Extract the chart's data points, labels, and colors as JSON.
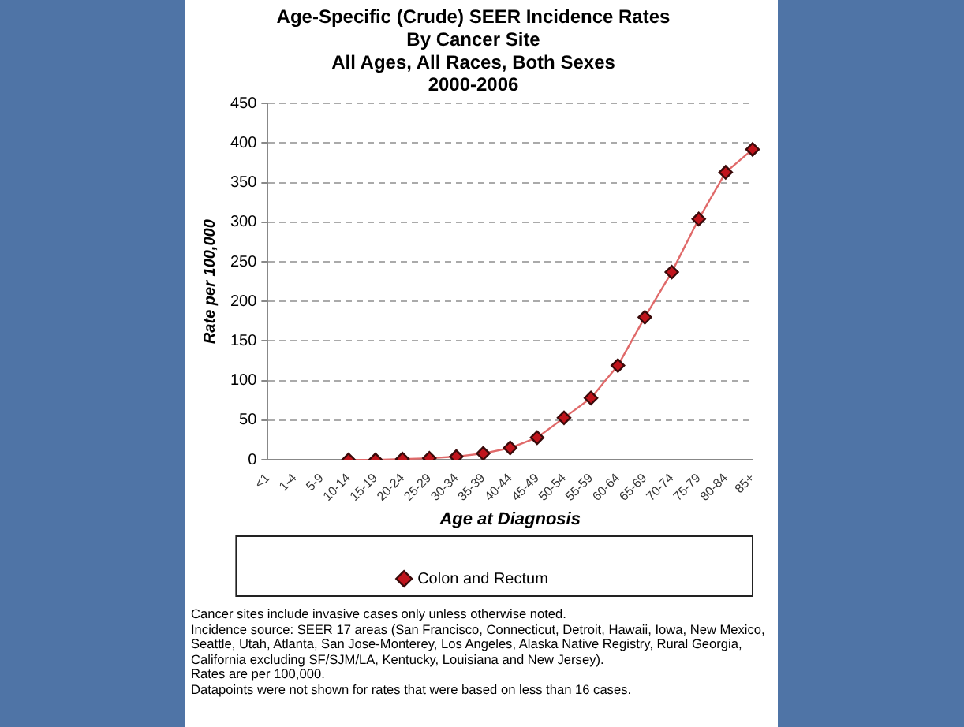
{
  "chart_data": {
    "type": "line",
    "title": "Age-Specific (Crude) SEER Incidence Rates\nBy Cancer Site\nAll Ages, All Races, Both Sexes\n2000-2006",
    "xlabel": "Age at Diagnosis",
    "ylabel": "Rate per 100,000",
    "categories": [
      "<1",
      "1-4",
      "5-9",
      "10-14",
      "15-19",
      "20-24",
      "25-29",
      "30-34",
      "35-39",
      "40-44",
      "45-49",
      "50-54",
      "55-59",
      "60-64",
      "65-69",
      "70-74",
      "75-79",
      "80-84",
      "85+"
    ],
    "series": [
      {
        "name": "Colon and Rectum",
        "color": "#c0141c",
        "values": [
          null,
          null,
          null,
          0,
          0,
          1,
          2,
          4,
          8,
          15,
          28,
          53,
          78,
          119,
          180,
          237,
          304,
          363,
          392
        ]
      }
    ],
    "ylim": [
      0,
      450
    ],
    "yticks": [
      0,
      50,
      100,
      150,
      200,
      250,
      300,
      350,
      400,
      450
    ],
    "grid": "y",
    "legend": "bottom",
    "marker": "diamond",
    "line_style": "solid",
    "annotations": [
      "Cancer sites include invasive cases only unless otherwise noted.",
      "Incidence source: SEER 17 areas (San Francisco, Connecticut, Detroit, Hawaii, Iowa, New Mexico, Seattle, Utah, Atlanta, San Jose-Monterey, Los Angeles, Alaska Native Registry, Rural Georgia, California excluding SF/SJM/LA, Kentucky, Louisiana and New Jersey).",
      "Rates are per 100,000.",
      "Datapoints were not shown for rates that were based on less than 16 cases."
    ]
  }
}
